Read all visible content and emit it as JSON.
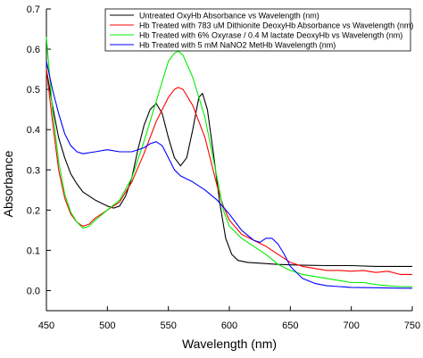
{
  "chart_data": {
    "type": "line",
    "xlabel": "Wavelength (nm)",
    "ylabel": "Absorbance",
    "xlim": [
      450,
      750
    ],
    "ylim": [
      -0.05,
      0.7
    ],
    "xticks": [
      450,
      500,
      550,
      600,
      650,
      700,
      750
    ],
    "yticks": [
      0.0,
      0.1,
      0.2,
      0.3,
      0.4,
      0.5,
      0.6,
      0.7
    ],
    "ytick_labels": [
      "0.0",
      "0.1",
      "0.2",
      "0.3",
      "0.4",
      "0.5",
      "0.6",
      "0.7"
    ],
    "grid": false,
    "legend_position": "top",
    "series": [
      {
        "name": "Untreated OxyHb Absorbance vs Wavelength (nm)",
        "color": "#000000",
        "points": [
          [
            450,
            0.55
          ],
          [
            455,
            0.46
          ],
          [
            460,
            0.38
          ],
          [
            465,
            0.33
          ],
          [
            470,
            0.29
          ],
          [
            475,
            0.265
          ],
          [
            480,
            0.245
          ],
          [
            490,
            0.225
          ],
          [
            500,
            0.21
          ],
          [
            505,
            0.205
          ],
          [
            510,
            0.21
          ],
          [
            515,
            0.235
          ],
          [
            520,
            0.28
          ],
          [
            525,
            0.35
          ],
          [
            530,
            0.41
          ],
          [
            535,
            0.45
          ],
          [
            540,
            0.465
          ],
          [
            545,
            0.44
          ],
          [
            550,
            0.38
          ],
          [
            555,
            0.33
          ],
          [
            560,
            0.31
          ],
          [
            565,
            0.33
          ],
          [
            570,
            0.4
          ],
          [
            575,
            0.48
          ],
          [
            578,
            0.49
          ],
          [
            582,
            0.45
          ],
          [
            587,
            0.34
          ],
          [
            592,
            0.22
          ],
          [
            597,
            0.13
          ],
          [
            602,
            0.09
          ],
          [
            607,
            0.075
          ],
          [
            615,
            0.07
          ],
          [
            625,
            0.068
          ],
          [
            640,
            0.065
          ],
          [
            660,
            0.063
          ],
          [
            680,
            0.062
          ],
          [
            700,
            0.062
          ],
          [
            720,
            0.06
          ],
          [
            740,
            0.06
          ],
          [
            750,
            0.06
          ]
        ]
      },
      {
        "name": "Hb Treated with 783 uM Dithionite DeoxyHb Absorbance vs Wavelength (nm)",
        "color": "#ff0000",
        "points": [
          [
            450,
            0.55
          ],
          [
            455,
            0.42
          ],
          [
            460,
            0.3
          ],
          [
            465,
            0.23
          ],
          [
            470,
            0.19
          ],
          [
            475,
            0.17
          ],
          [
            480,
            0.16
          ],
          [
            485,
            0.165
          ],
          [
            490,
            0.18
          ],
          [
            500,
            0.2
          ],
          [
            510,
            0.22
          ],
          [
            520,
            0.27
          ],
          [
            530,
            0.34
          ],
          [
            540,
            0.42
          ],
          [
            550,
            0.48
          ],
          [
            555,
            0.5
          ],
          [
            558,
            0.505
          ],
          [
            562,
            0.5
          ],
          [
            570,
            0.46
          ],
          [
            580,
            0.38
          ],
          [
            590,
            0.26
          ],
          [
            595,
            0.21
          ],
          [
            600,
            0.175
          ],
          [
            610,
            0.14
          ],
          [
            620,
            0.125
          ],
          [
            630,
            0.11
          ],
          [
            640,
            0.09
          ],
          [
            650,
            0.07
          ],
          [
            660,
            0.06
          ],
          [
            670,
            0.055
          ],
          [
            680,
            0.05
          ],
          [
            690,
            0.05
          ],
          [
            700,
            0.048
          ],
          [
            710,
            0.05
          ],
          [
            720,
            0.045
          ],
          [
            730,
            0.048
          ],
          [
            740,
            0.04
          ],
          [
            750,
            0.04
          ]
        ]
      },
      {
        "name": "Hb Treated with 6% Oxyrase / 0.4 M lactate DeoxyHb vs Wavelength (nm)",
        "color": "#00ee00",
        "points": [
          [
            450,
            0.63
          ],
          [
            455,
            0.45
          ],
          [
            460,
            0.32
          ],
          [
            465,
            0.24
          ],
          [
            470,
            0.195
          ],
          [
            475,
            0.17
          ],
          [
            480,
            0.155
          ],
          [
            485,
            0.16
          ],
          [
            490,
            0.175
          ],
          [
            500,
            0.2
          ],
          [
            510,
            0.225
          ],
          [
            520,
            0.28
          ],
          [
            530,
            0.37
          ],
          [
            540,
            0.47
          ],
          [
            545,
            0.52
          ],
          [
            550,
            0.57
          ],
          [
            555,
            0.59
          ],
          [
            558,
            0.595
          ],
          [
            562,
            0.585
          ],
          [
            570,
            0.53
          ],
          [
            580,
            0.43
          ],
          [
            590,
            0.28
          ],
          [
            595,
            0.2
          ],
          [
            600,
            0.16
          ],
          [
            610,
            0.13
          ],
          [
            620,
            0.11
          ],
          [
            630,
            0.09
          ],
          [
            640,
            0.065
          ],
          [
            650,
            0.05
          ],
          [
            660,
            0.04
          ],
          [
            670,
            0.035
          ],
          [
            680,
            0.03
          ],
          [
            690,
            0.025
          ],
          [
            700,
            0.02
          ],
          [
            710,
            0.02
          ],
          [
            720,
            0.015
          ],
          [
            730,
            0.012
          ],
          [
            740,
            0.01
          ],
          [
            750,
            0.01
          ]
        ]
      },
      {
        "name": "Hb Treated with 5 mM NaNO2 MetHb Wavelength (nm)",
        "color": "#0000ff",
        "points": [
          [
            450,
            0.57
          ],
          [
            455,
            0.5
          ],
          [
            460,
            0.44
          ],
          [
            465,
            0.39
          ],
          [
            470,
            0.36
          ],
          [
            475,
            0.345
          ],
          [
            480,
            0.34
          ],
          [
            490,
            0.345
          ],
          [
            500,
            0.35
          ],
          [
            510,
            0.345
          ],
          [
            520,
            0.345
          ],
          [
            530,
            0.355
          ],
          [
            535,
            0.365
          ],
          [
            540,
            0.37
          ],
          [
            545,
            0.36
          ],
          [
            550,
            0.33
          ],
          [
            555,
            0.3
          ],
          [
            560,
            0.285
          ],
          [
            570,
            0.27
          ],
          [
            580,
            0.25
          ],
          [
            590,
            0.225
          ],
          [
            600,
            0.19
          ],
          [
            610,
            0.15
          ],
          [
            620,
            0.125
          ],
          [
            625,
            0.12
          ],
          [
            630,
            0.13
          ],
          [
            635,
            0.13
          ],
          [
            640,
            0.115
          ],
          [
            645,
            0.09
          ],
          [
            650,
            0.06
          ],
          [
            660,
            0.03
          ],
          [
            670,
            0.018
          ],
          [
            680,
            0.012
          ],
          [
            690,
            0.01
          ],
          [
            700,
            0.008
          ],
          [
            720,
            0.007
          ],
          [
            740,
            0.006
          ],
          [
            750,
            0.006
          ]
        ]
      }
    ]
  }
}
